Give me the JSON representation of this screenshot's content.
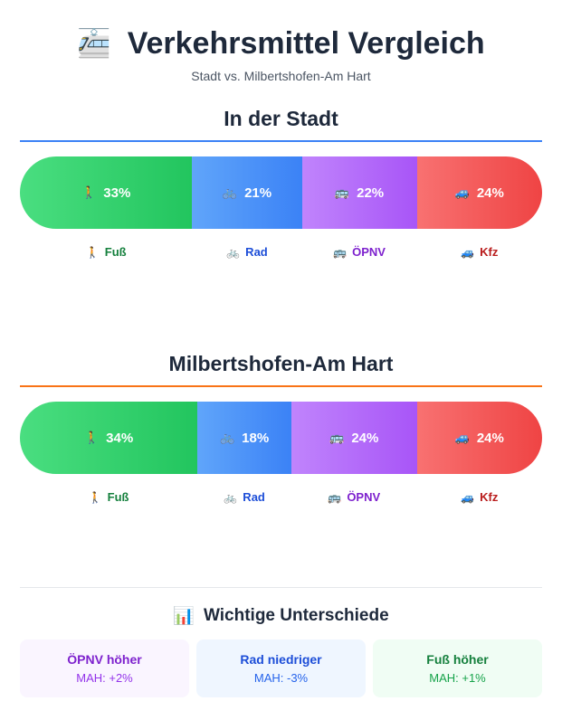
{
  "header": {
    "icon": "🚈",
    "title": "Verkehrsmittel Vergleich",
    "subtitle": "Stadt vs. Milbertshofen-Am Hart"
  },
  "modes": [
    {
      "key": "fuss",
      "emoji": "🚶",
      "label": "Fuß",
      "gradient": [
        "#4ade80",
        "#22c55e"
      ],
      "text_color": "#15803d"
    },
    {
      "key": "rad",
      "emoji": "🚲",
      "label": "Rad",
      "gradient": [
        "#60a5fa",
        "#3b82f6"
      ],
      "text_color": "#1d4ed8"
    },
    {
      "key": "oepnv",
      "emoji": "🚌",
      "label": "ÖPNV",
      "gradient": [
        "#c084fc",
        "#a855f7"
      ],
      "text_color": "#7e22ce"
    },
    {
      "key": "kfz",
      "emoji": "🚙",
      "label": "Kfz",
      "gradient": [
        "#f87171",
        "#ef4444"
      ],
      "text_color": "#b91c1c"
    }
  ],
  "chart_data": [
    {
      "type": "bar",
      "title": "In der Stadt",
      "accent": "#3b82f6",
      "categories": [
        "Fuß",
        "Rad",
        "ÖPNV",
        "Kfz"
      ],
      "values": [
        33,
        21,
        22,
        24
      ],
      "value_labels": [
        "33%",
        "21%",
        "22%",
        "24%"
      ]
    },
    {
      "type": "bar",
      "title": "Milbertshofen-Am Hart",
      "accent": "#f97316",
      "categories": [
        "Fuß",
        "Rad",
        "ÖPNV",
        "Kfz"
      ],
      "values": [
        34,
        18,
        24,
        24
      ],
      "value_labels": [
        "34%",
        "18%",
        "24%",
        "24%"
      ]
    }
  ],
  "differences": {
    "icon": "📊",
    "title": "Wichtige Unterschiede",
    "cards": [
      {
        "title": "ÖPNV höher",
        "value": "MAH: +2%",
        "bg": "#faf5ff",
        "title_color": "#7e22ce",
        "value_color": "#9333ea"
      },
      {
        "title": "Rad niedriger",
        "value": "MAH: -3%",
        "bg": "#eff6ff",
        "title_color": "#1d4ed8",
        "value_color": "#2563eb"
      },
      {
        "title": "Fuß höher",
        "value": "MAH: +1%",
        "bg": "#f0fdf4",
        "title_color": "#15803d",
        "value_color": "#16a34a"
      }
    ]
  }
}
